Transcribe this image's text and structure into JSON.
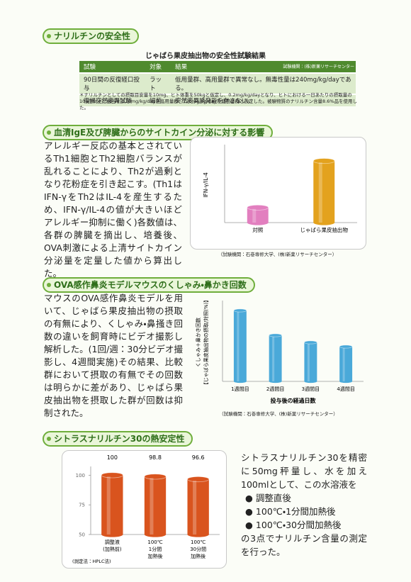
{
  "safety": {
    "title": "ナリルチンの安全性",
    "table_title": "じゃばら果皮抽出物の安全性試験結果",
    "source": "試験機関：(株)新薬リサーチセンター",
    "headers": [
      "試験",
      "対象",
      "結果"
    ],
    "rows": [
      [
        "90日間の反復経口投与",
        "ラット",
        "低用量群、高用量群で異常なし。無毒性量は240mg/kg/dayである。"
      ],
      [
        "復帰突然変異試験",
        "細菌",
        "突然変異誘発能を有さない。"
      ]
    ],
    "note": "＊ナリルチンとしての摂取目安量を10mg、ヒト体重を50kgと仮定し、0.2mg/kg/dayとなり、ヒトにおける一日あたりの摂取量の100倍以上に相当する20mg/kg/dayを高用量群、120mg/kg/dayを低用量群と設定した。被験物質のナリルチン含量8.6%品を使用した。"
  },
  "cytokine": {
    "title": "血清IgE及び脾臓からのサイトカイン分泌に対する影響",
    "text": "アレルギー反応の基本とされているTh1細胞とTh2細胞バランスが乱れることにより、Th2が過剰となり花粉症を引き起こす。(Th1はIFN-γをTh2はIL-4を産生するため、IFN-γ/IL-4の値が大きいほどアレルギー抑制に働く)各数値は、各群の脾臓を摘出し、培養後、OVA刺激による上清サイトカイン分泌量を定量した値から算出した。",
    "chart": {
      "type": "bar",
      "ylabel": [
        "IFN-γ/IL-4"
      ],
      "categories": [
        [
          "対照"
        ],
        [
          "じゃばら果皮抽出物"
        ]
      ],
      "values": [
        20,
        82
      ],
      "colors": [
        "#e27fbf",
        "#e3a21e"
      ],
      "ylim": [
        0,
        100
      ]
    },
    "source": "（試験機関：石巻専修大学、(株)新薬リサーチセンター）"
  },
  "sneeze": {
    "title": "OVA感作鼻炎モデルマウスのくしゃみ・鼻かき回数",
    "text": "マウスのOVA感作鼻炎モデルを用いて、じゃばら果皮抽出物の摂取の有無により、くしゃみ・鼻掻き回数の違いを飼育時にビデオ撮影し解析した。(1回/週：30分ビデオ撮影し、4週間実施)その結果、比較群において摂取の有無でその回数は明らかに差があり、じゃばら果皮抽出物を摂取した群が回数は抑制された。",
    "chart": {
      "type": "bar",
      "ylabel": [
        "くしゃみ＋鼻かき回数",
        "【じゃばら果皮抽出物の摂取/対照(%)】"
      ],
      "xlabel": "投与後の経過日数",
      "categories": [
        [
          "1週間目"
        ],
        [
          "2週間目"
        ],
        [
          "3週間目"
        ],
        [
          "4週間目"
        ]
      ],
      "values": [
        100,
        65,
        55,
        49
      ],
      "colors": [
        "#4aa9d9",
        "#4aa9d9",
        "#4aa9d9",
        "#4aa9d9"
      ],
      "ylim": [
        0,
        110
      ]
    },
    "source": "（試験機関：石巻専修大学、(株)新薬リサーチセンター）"
  },
  "heat": {
    "title": "シトラスナリルチン30の熱安定性",
    "chart": {
      "type": "bar",
      "categories": [
        [
          "調整液",
          "(加熱前)"
        ],
        [
          "100℃",
          "1分間",
          "加熱後"
        ],
        [
          "100℃",
          "30分間",
          "加熱後"
        ]
      ],
      "values": [
        100,
        98.8,
        96.6
      ],
      "colors": [
        "#d9541e",
        "#d9541e",
        "#d9541e"
      ],
      "ylim": [
        50,
        105
      ],
      "yticks": [
        50,
        75,
        100
      ],
      "value_labels_on": true
    },
    "method": "(測定法：HPLC法)",
    "text": "シトラスナリルチン30を精密に50mg秤量し、水を加え100mlとして、この水溶液を",
    "list": [
      "調整直後",
      "100℃・1分間加熱後",
      "100℃・30分間加熱後"
    ],
    "text_end": "の3点でナリルチン含量の測定を行った。"
  }
}
